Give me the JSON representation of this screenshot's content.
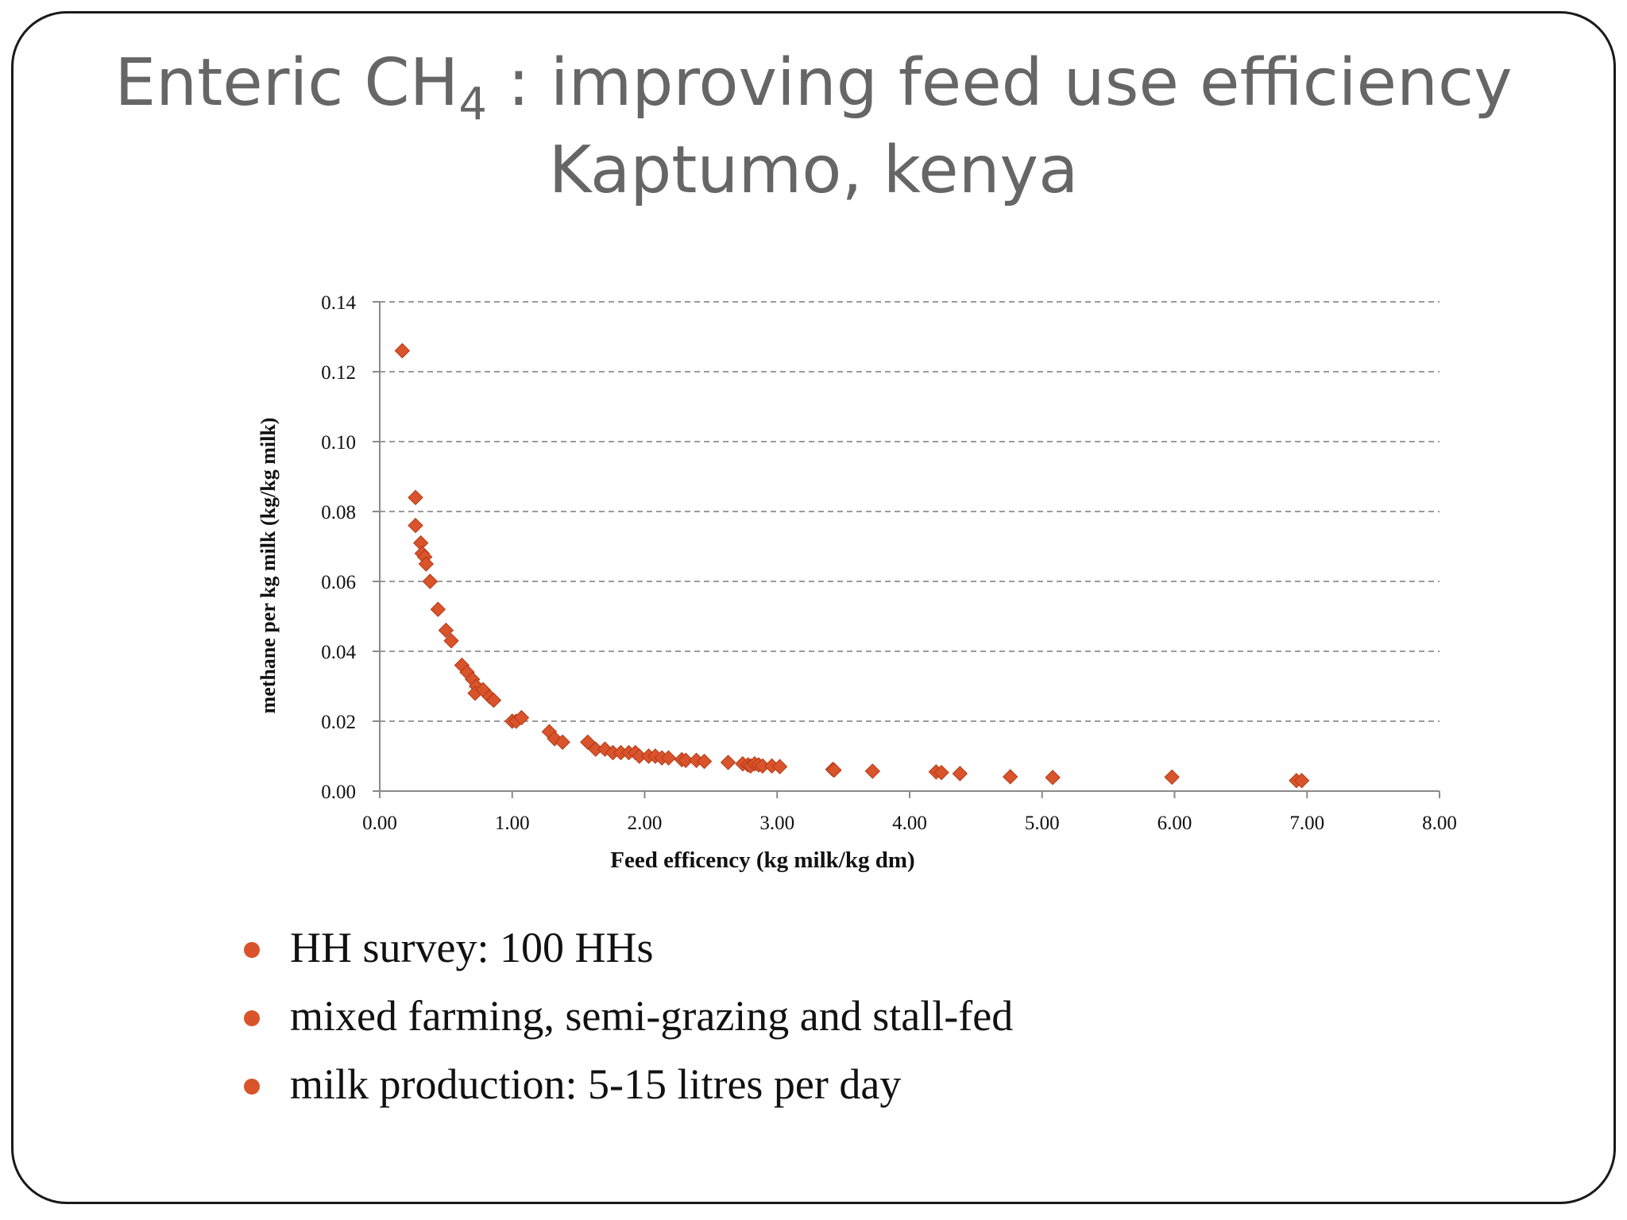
{
  "slide": {
    "title_main": "Enteric CH",
    "title_subscript": "4",
    "title_rest": " : improving feed use efficiency",
    "title_line2": "Kaptumo, kenya",
    "bullets": [
      "HH survey: 100 HHs",
      "mixed farming, semi-grazing and stall-fed",
      "milk production: 5-15 litres per day"
    ],
    "bullet_color": "#d9532b"
  },
  "chart_data": {
    "type": "scatter",
    "xlabel": "Feed efficency (kg milk/kg dm)",
    "ylabel": "methane per kg milk  (kg/kg milk)",
    "xlim": [
      0,
      8
    ],
    "ylim": [
      0,
      0.14
    ],
    "xticks": [
      "0.00",
      "1.00",
      "2.00",
      "3.00",
      "4.00",
      "5.00",
      "6.00",
      "7.00",
      "8.00"
    ],
    "yticks": [
      "0.00",
      "0.02",
      "0.04",
      "0.06",
      "0.08",
      "0.10",
      "0.12",
      "0.14"
    ],
    "grid": "horizontal dashed",
    "marker": "diamond",
    "marker_color": "#d9532b",
    "points": [
      [
        0.17,
        0.126
      ],
      [
        0.27,
        0.084
      ],
      [
        0.27,
        0.076
      ],
      [
        0.31,
        0.071
      ],
      [
        0.32,
        0.068
      ],
      [
        0.34,
        0.067
      ],
      [
        0.35,
        0.065
      ],
      [
        0.38,
        0.06
      ],
      [
        0.44,
        0.052
      ],
      [
        0.5,
        0.046
      ],
      [
        0.54,
        0.043
      ],
      [
        0.62,
        0.036
      ],
      [
        0.66,
        0.034
      ],
      [
        0.7,
        0.032
      ],
      [
        0.73,
        0.03
      ],
      [
        0.72,
        0.028
      ],
      [
        0.78,
        0.029
      ],
      [
        0.83,
        0.027
      ],
      [
        0.86,
        0.026
      ],
      [
        1.0,
        0.02
      ],
      [
        1.03,
        0.02
      ],
      [
        1.07,
        0.021
      ],
      [
        1.28,
        0.017
      ],
      [
        1.32,
        0.015
      ],
      [
        1.38,
        0.014
      ],
      [
        1.57,
        0.014
      ],
      [
        1.63,
        0.012
      ],
      [
        1.7,
        0.012
      ],
      [
        1.76,
        0.011
      ],
      [
        1.82,
        0.011
      ],
      [
        1.88,
        0.011
      ],
      [
        1.93,
        0.011
      ],
      [
        1.96,
        0.01
      ],
      [
        2.03,
        0.01
      ],
      [
        2.08,
        0.01
      ],
      [
        2.13,
        0.0095
      ],
      [
        2.18,
        0.0095
      ],
      [
        2.28,
        0.009
      ],
      [
        2.31,
        0.0088
      ],
      [
        2.39,
        0.0088
      ],
      [
        2.45,
        0.0085
      ],
      [
        2.63,
        0.0082
      ],
      [
        2.74,
        0.0078
      ],
      [
        2.78,
        0.0075
      ],
      [
        2.8,
        0.0072
      ],
      [
        2.83,
        0.0078
      ],
      [
        2.86,
        0.0075
      ],
      [
        2.89,
        0.0072
      ],
      [
        2.96,
        0.0072
      ],
      [
        3.02,
        0.007
      ],
      [
        3.42,
        0.0062
      ],
      [
        3.43,
        0.006
      ],
      [
        3.72,
        0.0057
      ],
      [
        4.2,
        0.0055
      ],
      [
        4.24,
        0.0053
      ],
      [
        4.38,
        0.005
      ],
      [
        4.76,
        0.0041
      ],
      [
        5.08,
        0.0039
      ],
      [
        5.98,
        0.004
      ],
      [
        6.92,
        0.003
      ],
      [
        6.96,
        0.003
      ]
    ]
  }
}
